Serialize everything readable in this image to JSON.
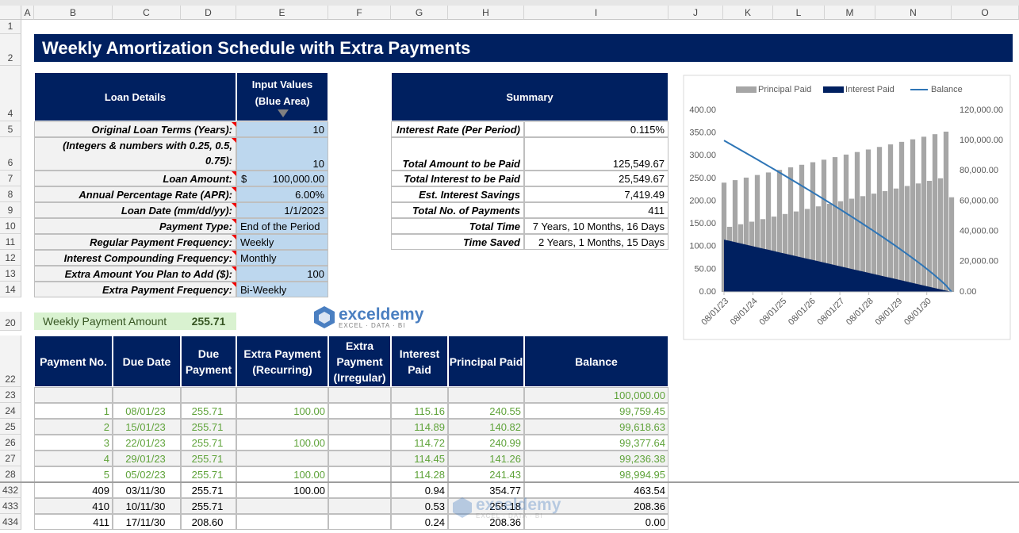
{
  "columns": [
    "A",
    "B",
    "C",
    "D",
    "E",
    "F",
    "G",
    "H",
    "I",
    "J",
    "K",
    "L",
    "M",
    "N",
    "O"
  ],
  "row_numbers": [
    "1",
    "2",
    "4",
    "5",
    "6",
    "7",
    "8",
    "9",
    "10",
    "11",
    "12",
    "13",
    "14",
    "20",
    "22",
    "23",
    "24",
    "25",
    "26",
    "27",
    "28",
    "432",
    "433",
    "434"
  ],
  "title": "Weekly Amortization Schedule with Extra Payments",
  "loan_details": {
    "header": "Loan Details",
    "input_header": "Input Values (Blue Area)",
    "rows": [
      {
        "label": "Original Loan Terms (Years):",
        "value": "10"
      },
      {
        "label": "(Integers & numbers with 0.25, 0.5, 0.75):",
        "value": "10"
      },
      {
        "label": "Loan Amount:",
        "currency": "$",
        "value": "100,000.00"
      },
      {
        "label": "Annual Percentage Rate (APR):",
        "value": "6.00%"
      },
      {
        "label": "Loan Date (mm/dd/yy):",
        "value": "1/1/2023"
      },
      {
        "label": "Payment Type:",
        "value": "End of the Period"
      },
      {
        "label": "Regular Payment Frequency:",
        "value": "Weekly"
      },
      {
        "label": "Interest Compounding Frequency:",
        "value": "Monthly"
      },
      {
        "label": "Extra Amount You Plan to Add ($):",
        "value": "100"
      },
      {
        "label": "Extra Payment Frequency:",
        "value": "Bi-Weekly"
      }
    ]
  },
  "summary": {
    "header": "Summary",
    "rows": [
      {
        "label": "Interest Rate (Per Period)",
        "value": "0.115%"
      },
      {
        "label": "Total Amount to be Paid",
        "value": "125,549.67"
      },
      {
        "label": "Total Interest to be Paid",
        "value": "25,549.67"
      },
      {
        "label": "Est. Interest Savings",
        "value": "7,419.49"
      },
      {
        "label": "Total No. of Payments",
        "value": "411"
      },
      {
        "label": "Total Time",
        "value": "7 Years, 10 Months, 16 Days"
      },
      {
        "label": "Time Saved",
        "value": "2 Years, 1 Months, 15 Days"
      }
    ]
  },
  "payment": {
    "label": "Weekly Payment Amount",
    "value": "255.71"
  },
  "watermark": {
    "name": "exceldemy",
    "tagline": "EXCEL · DATA · BI"
  },
  "schedule": {
    "headers": {
      "no": "Payment No.",
      "date": "Due Date",
      "payment": "Due Payment",
      "extra": "Extra Payment (Recurring)",
      "irregular": "Extra Payment (Irregular)",
      "interest": "Interest Paid",
      "principal": "Principal Paid",
      "balance": "Balance"
    },
    "start_balance": "100,000.00",
    "rows": [
      {
        "no": "1",
        "date": "08/01/23",
        "payment": "255.71",
        "extra": "100.00",
        "interest": "115.16",
        "principal": "240.55",
        "balance": "99,759.45"
      },
      {
        "no": "2",
        "date": "15/01/23",
        "payment": "255.71",
        "interest": "114.89",
        "principal": "140.82",
        "balance": "99,618.63"
      },
      {
        "no": "3",
        "date": "22/01/23",
        "payment": "255.71",
        "extra": "100.00",
        "interest": "114.72",
        "principal": "240.99",
        "balance": "99,377.64"
      },
      {
        "no": "4",
        "date": "29/01/23",
        "payment": "255.71",
        "interest": "114.45",
        "principal": "141.26",
        "balance": "99,236.38"
      },
      {
        "no": "5",
        "date": "05/02/23",
        "payment": "255.71",
        "extra": "100.00",
        "interest": "114.28",
        "principal": "241.43",
        "balance": "98,994.95"
      },
      {
        "no": "409",
        "date": "03/11/30",
        "payment": "255.71",
        "extra": "100.00",
        "interest": "0.94",
        "principal": "354.77",
        "balance": "463.54"
      },
      {
        "no": "410",
        "date": "10/11/30",
        "payment": "255.71",
        "interest": "0.53",
        "principal": "255.18",
        "balance": "208.36"
      },
      {
        "no": "411",
        "date": "17/11/30",
        "payment": "208.60",
        "interest": "0.24",
        "principal": "208.36",
        "balance": "0.00"
      }
    ]
  },
  "chart_data": {
    "type": "combo",
    "x": [
      0,
      10,
      20,
      30,
      40,
      50,
      60,
      70,
      80,
      90,
      100,
      110,
      120,
      130,
      140,
      150,
      160,
      170,
      180,
      190,
      200,
      210,
      220,
      230,
      240,
      250,
      260,
      270,
      280,
      290,
      300,
      310,
      320,
      330,
      340,
      350,
      360,
      370,
      380,
      390,
      400,
      410
    ],
    "series": [
      {
        "name": "Principal Paid",
        "type": "bar",
        "color": "#a6a6a6",
        "values": [
          240.55,
          143.3,
          246.1,
          148.9,
          251.7,
          154.6,
          257.4,
          160.2,
          263.0,
          165.8,
          268.7,
          171.5,
          274.3,
          177.1,
          279.9,
          182.7,
          285.5,
          188.3,
          291.1,
          193.9,
          296.8,
          199.6,
          302.4,
          205.2,
          308.0,
          210.8,
          313.6,
          216.4,
          319.2,
          222.0,
          324.8,
          227.6,
          330.4,
          233.2,
          336.0,
          238.8,
          341.7,
          244.5,
          347.3,
          250.1,
          352.9,
          208.36
        ]
      },
      {
        "name": "Interest Paid",
        "type": "area",
        "color": "#002060",
        "values": [
          115.16,
          112.4,
          109.6,
          106.8,
          104.0,
          101.1,
          98.3,
          95.5,
          92.7,
          89.9,
          87.0,
          84.2,
          81.4,
          78.6,
          75.8,
          73.0,
          70.2,
          67.4,
          64.6,
          61.8,
          58.9,
          56.1,
          53.3,
          50.5,
          47.7,
          44.9,
          42.1,
          39.3,
          36.5,
          33.7,
          30.9,
          28.1,
          25.3,
          22.5,
          19.7,
          16.9,
          14.0,
          11.2,
          8.4,
          5.6,
          2.8,
          0.24
        ]
      },
      {
        "name": "Balance",
        "type": "line",
        "color": "#2e75b6",
        "axis": "y2",
        "values": [
          100000,
          97920,
          95840,
          93740,
          91640,
          89530,
          87420,
          85290,
          83150,
          81010,
          78840,
          76680,
          74500,
          72320,
          70110,
          67900,
          65670,
          63430,
          61180,
          58910,
          56620,
          54330,
          52010,
          49680,
          47320,
          44940,
          42550,
          40120,
          37670,
          35190,
          32680,
          30140,
          27560,
          24930,
          22260,
          19520,
          16720,
          13830,
          10830,
          7670,
          4260,
          0
        ]
      }
    ],
    "xlim": [
      0,
      410
    ],
    "xticks": [
      {
        "value": 0,
        "label": "08/01/23"
      },
      {
        "value": 52.14,
        "label": "08/01/24"
      },
      {
        "value": 104.43,
        "label": "08/01/25"
      },
      {
        "value": 156.57,
        "label": "08/01/26"
      },
      {
        "value": 208.71,
        "label": "08/01/27"
      },
      {
        "value": 260.86,
        "label": "08/01/28"
      },
      {
        "value": 313.14,
        "label": "08/01/29"
      },
      {
        "value": 365.29,
        "label": "08/01/30"
      }
    ],
    "ylim": [
      0,
      400
    ],
    "yticks": [
      {
        "value": 0,
        "label": "0.00"
      },
      {
        "value": 50,
        "label": "50.00"
      },
      {
        "value": 100,
        "label": "100.00"
      },
      {
        "value": 150,
        "label": "150.00"
      },
      {
        "value": 200,
        "label": "200.00"
      },
      {
        "value": 250,
        "label": "250.00"
      },
      {
        "value": 300,
        "label": "300.00"
      },
      {
        "value": 350,
        "label": "350.00"
      },
      {
        "value": 400,
        "label": "400.00"
      }
    ],
    "y2lim": [
      0,
      120000
    ],
    "y2ticks": [
      {
        "value": 0,
        "label": "0.00"
      },
      {
        "value": 20000,
        "label": "20,000.00"
      },
      {
        "value": 40000,
        "label": "40,000.00"
      },
      {
        "value": 60000,
        "label": "60,000.00"
      },
      {
        "value": 80000,
        "label": "80,000.00"
      },
      {
        "value": 100000,
        "label": "100,000.00"
      },
      {
        "value": 120000,
        "label": "120,000.00"
      }
    ],
    "grid": false,
    "legend": "top"
  }
}
